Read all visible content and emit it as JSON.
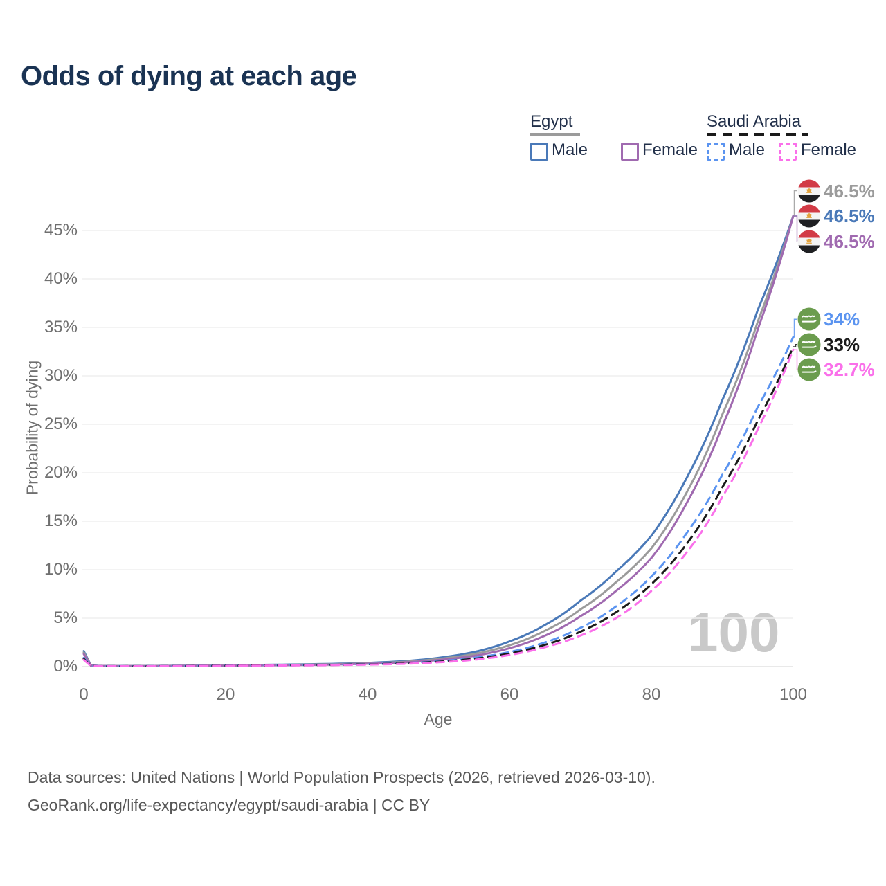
{
  "title": "Odds of dying at each age",
  "watermark": "100",
  "legend": {
    "egypt": {
      "label": "Egypt",
      "male_label": "Male",
      "female_label": "Female"
    },
    "saudi": {
      "label": "Saudi Arabia",
      "male_label": "Male",
      "female_label": "Female"
    }
  },
  "axes": {
    "x_label": "Age",
    "y_label": "Probability of dying",
    "x_ticks": [
      "0",
      "20",
      "40",
      "60",
      "80",
      "100"
    ],
    "y_ticks": [
      "0%",
      "5%",
      "10%",
      "15%",
      "20%",
      "25%",
      "30%",
      "35%",
      "40%",
      "45%"
    ]
  },
  "footer": {
    "line1": "Data sources: United Nations | World Population Prospects (2026, retrieved 2026-03-10).",
    "line2": "GeoRank.org/life-expectancy/egypt/saudi-arabia | CC BY"
  },
  "colors": {
    "title_text": "#1a3353",
    "legend_text": "#22304a",
    "axis_text": "#6f6f6f",
    "grid": "#efefef",
    "zero_line": "#e2e2e2",
    "watermark": "#c9c9c9",
    "egypt_male": "#4a79b8",
    "egypt_all": "#9b9b9b",
    "egypt_female": "#a06ab0",
    "saudi_male": "#5b94f0",
    "saudi_all": "#1a1a1a",
    "saudi_female": "#fa70ea",
    "egypt_underline": "#9b9b9b",
    "saudi_underline": "#1a1a1a"
  },
  "chart_data": {
    "type": "line",
    "title": "Odds of dying at each age",
    "xlabel": "Age",
    "ylabel": "Probability of dying",
    "xlim": [
      0,
      100
    ],
    "ylim": [
      0,
      48
    ],
    "grid": "horizontal-only",
    "legend_position": "top-right",
    "x": [
      0,
      1,
      2,
      5,
      10,
      15,
      20,
      25,
      30,
      35,
      40,
      45,
      50,
      55,
      60,
      65,
      70,
      75,
      80,
      85,
      90,
      95,
      100
    ],
    "series": [
      {
        "id": "egypt-male",
        "name": "Egypt Male",
        "country": "Egypt",
        "color": "#4a79b8",
        "dash": false,
        "flag": "egypt",
        "end_label": "46.5%",
        "label_slot": 1,
        "values": [
          1.6,
          0.12,
          0.08,
          0.06,
          0.07,
          0.1,
          0.14,
          0.18,
          0.22,
          0.28,
          0.38,
          0.55,
          0.9,
          1.5,
          2.6,
          4.3,
          6.8,
          9.8,
          13.5,
          19.5,
          27.5,
          36.8,
          46.5
        ]
      },
      {
        "id": "egypt-all",
        "name": "Egypt (both sexes)",
        "country": "Egypt",
        "color": "#9b9b9b",
        "dash": false,
        "flag": "egypt",
        "end_label": "46.5%",
        "label_slot": 0,
        "values": [
          1.45,
          0.11,
          0.075,
          0.055,
          0.065,
          0.09,
          0.12,
          0.15,
          0.19,
          0.24,
          0.33,
          0.48,
          0.78,
          1.3,
          2.2,
          3.7,
          5.9,
          8.7,
          12.2,
          18.0,
          26.0,
          35.6,
          46.5
        ]
      },
      {
        "id": "egypt-female",
        "name": "Egypt Female",
        "country": "Egypt",
        "color": "#a06ab0",
        "dash": false,
        "flag": "egypt",
        "end_label": "46.5%",
        "label_slot": 2,
        "values": [
          1.3,
          0.1,
          0.07,
          0.05,
          0.06,
          0.08,
          0.1,
          0.13,
          0.16,
          0.21,
          0.29,
          0.42,
          0.68,
          1.1,
          1.9,
          3.2,
          5.2,
          7.8,
          11.2,
          16.9,
          24.8,
          34.8,
          46.5
        ]
      },
      {
        "id": "saudi-male",
        "name": "Saudi Arabia Male",
        "country": "Saudi Arabia",
        "color": "#5b94f0",
        "dash": true,
        "flag": "saudi",
        "end_label": "34%",
        "label_slot": 0,
        "values": [
          0.9,
          0.07,
          0.05,
          0.04,
          0.05,
          0.07,
          0.1,
          0.12,
          0.15,
          0.19,
          0.25,
          0.35,
          0.55,
          0.9,
          1.5,
          2.5,
          4.0,
          6.2,
          9.3,
          13.8,
          19.8,
          26.8,
          34.0
        ]
      },
      {
        "id": "saudi-all",
        "name": "Saudi Arabia (both sexes)",
        "country": "Saudi Arabia",
        "color": "#1a1a1a",
        "dash": true,
        "flag": "saudi",
        "end_label": "33%",
        "label_slot": 1,
        "values": [
          0.8,
          0.065,
          0.045,
          0.038,
          0.045,
          0.065,
          0.09,
          0.11,
          0.14,
          0.17,
          0.23,
          0.32,
          0.5,
          0.8,
          1.35,
          2.25,
          3.6,
          5.6,
          8.5,
          12.7,
          18.5,
          25.4,
          33.0
        ]
      },
      {
        "id": "saudi-female",
        "name": "Saudi Arabia Female",
        "country": "Saudi Arabia",
        "color": "#fa70ea",
        "dash": true,
        "flag": "saudi",
        "end_label": "32.7%",
        "label_slot": 2,
        "values": [
          0.7,
          0.06,
          0.04,
          0.035,
          0.04,
          0.055,
          0.075,
          0.095,
          0.12,
          0.15,
          0.2,
          0.28,
          0.44,
          0.7,
          1.2,
          2.0,
          3.2,
          5.0,
          7.8,
          11.8,
          17.5,
          24.5,
          32.7
        ]
      }
    ]
  }
}
